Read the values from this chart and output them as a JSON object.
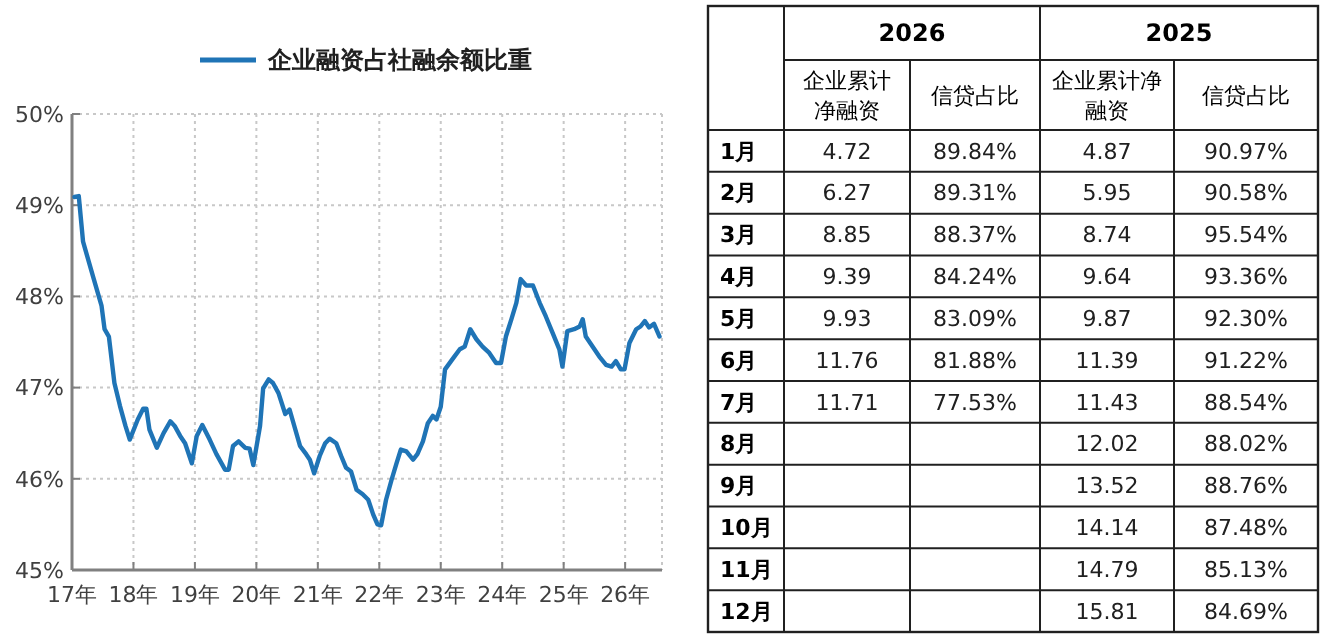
{
  "chart_data": [
    {
      "type": "line",
      "series": [
        {
          "name": "企业融资占社融余额比重",
          "color": "#1f74b6",
          "x": [
            17.04,
            17.11,
            17.18,
            17.35,
            17.48,
            17.53,
            17.6,
            17.69,
            17.78,
            17.87,
            17.94,
            18.07,
            18.16,
            18.21,
            18.26,
            18.38,
            18.49,
            18.6,
            18.67,
            18.76,
            18.84,
            18.95,
            19.03,
            19.12,
            19.24,
            19.35,
            19.49,
            19.55,
            19.62,
            19.71,
            19.82,
            19.89,
            19.95,
            20.06,
            20.11,
            20.2,
            20.27,
            20.36,
            20.47,
            20.54,
            20.71,
            20.81,
            20.87,
            20.94,
            21.03,
            21.12,
            21.19,
            21.3,
            21.38,
            21.46,
            21.54,
            21.63,
            21.73,
            21.82,
            21.9,
            21.97,
            22.03,
            22.11,
            22.2,
            22.28,
            22.35,
            22.44,
            22.55,
            22.62,
            22.71,
            22.79,
            22.87,
            22.93,
            23.0,
            23.07,
            23.2,
            23.31,
            23.39,
            23.48,
            23.58,
            23.68,
            23.79,
            23.9,
            23.98,
            24.06,
            24.15,
            24.23,
            24.3,
            24.39,
            24.5,
            24.61,
            24.71,
            24.82,
            24.93,
            24.98,
            25.06,
            25.17,
            25.26,
            25.31,
            25.36,
            25.47,
            25.58,
            25.69,
            25.78,
            25.85,
            25.93,
            25.99,
            26.07,
            26.18,
            26.25,
            26.32,
            26.39,
            26.47,
            26.56
          ],
          "values": [
            49.09,
            49.1,
            48.6,
            48.2,
            47.9,
            47.64,
            47.56,
            47.05,
            46.8,
            46.58,
            46.43,
            46.65,
            46.77,
            46.77,
            46.54,
            46.34,
            46.5,
            46.63,
            46.58,
            46.47,
            46.39,
            46.17,
            46.47,
            46.59,
            46.43,
            46.27,
            46.1,
            46.1,
            46.36,
            46.41,
            46.34,
            46.33,
            46.15,
            46.58,
            46.99,
            47.09,
            47.05,
            46.94,
            46.71,
            46.76,
            46.36,
            46.27,
            46.21,
            46.06,
            46.25,
            46.39,
            46.44,
            46.39,
            46.25,
            46.12,
            46.08,
            45.88,
            45.83,
            45.77,
            45.61,
            45.5,
            45.49,
            45.77,
            45.99,
            46.17,
            46.32,
            46.3,
            46.21,
            46.27,
            46.41,
            46.61,
            46.69,
            46.65,
            46.79,
            47.2,
            47.32,
            47.42,
            47.45,
            47.64,
            47.53,
            47.45,
            47.38,
            47.27,
            47.27,
            47.56,
            47.75,
            47.93,
            48.19,
            48.12,
            48.12,
            47.93,
            47.78,
            47.6,
            47.42,
            47.23,
            47.62,
            47.64,
            47.67,
            47.75,
            47.56,
            47.45,
            47.34,
            47.25,
            47.23,
            47.29,
            47.2,
            47.2,
            47.49,
            47.64,
            47.67,
            47.73,
            47.66,
            47.7,
            47.56
          ]
        }
      ],
      "xlim": [
        17,
        26.6
      ],
      "xticks": [
        {
          "value": 17,
          "label": "17年"
        },
        {
          "value": 18,
          "label": "18年"
        },
        {
          "value": 19,
          "label": "19年"
        },
        {
          "value": 20,
          "label": "20年"
        },
        {
          "value": 21,
          "label": "21年"
        },
        {
          "value": 22,
          "label": "22年"
        },
        {
          "value": 23,
          "label": "23年"
        },
        {
          "value": 24,
          "label": "24年"
        },
        {
          "value": 25,
          "label": "25年"
        },
        {
          "value": 26,
          "label": "26年"
        }
      ],
      "ylim": [
        45,
        50
      ],
      "yticks": [
        {
          "value": 45,
          "label": "45%"
        },
        {
          "value": 46,
          "label": "46%"
        },
        {
          "value": 47,
          "label": "47%"
        },
        {
          "value": 48,
          "label": "48%"
        },
        {
          "value": 49,
          "label": "49%"
        },
        {
          "value": 50,
          "label": "50%"
        }
      ],
      "grid": true,
      "legend": "top",
      "marker": "none",
      "line_style": "solid"
    },
    {
      "type": "heatmap",
      "annotations": [
        "2026",
        "2025"
      ],
      "categories": [
        "企业累计净融资",
        "信贷占比",
        "企业累计净融资",
        "信贷占比"
      ],
      "y_categories": [
        "1月",
        "2月",
        "3月",
        "4月",
        "5月",
        "6月",
        "7月",
        "8月",
        "9月",
        "10月",
        "11月",
        "12月"
      ],
      "cells": [
        [
          4.72,
          89.84,
          4.87,
          90.97
        ],
        [
          6.27,
          89.31,
          5.95,
          90.58
        ],
        [
          8.85,
          88.37,
          8.74,
          95.54
        ],
        [
          9.39,
          84.24,
          9.64,
          93.36
        ],
        [
          9.93,
          83.09,
          9.87,
          92.3
        ],
        [
          11.76,
          81.88,
          11.39,
          91.22
        ],
        [
          11.71,
          77.53,
          11.43,
          88.54
        ],
        [
          null,
          null,
          12.02,
          88.02
        ],
        [
          null,
          null,
          13.52,
          88.76
        ],
        [
          null,
          null,
          14.14,
          87.48
        ],
        [
          null,
          null,
          14.79,
          85.13
        ],
        [
          null,
          null,
          15.81,
          84.69
        ]
      ],
      "cell_labels": [
        [
          "4.72",
          "89.84%",
          "4.87",
          "90.97%"
        ],
        [
          "6.27",
          "89.31%",
          "5.95",
          "90.58%"
        ],
        [
          "8.85",
          "88.37%",
          "8.74",
          "95.54%"
        ],
        [
          "9.39",
          "84.24%",
          "9.64",
          "93.36%"
        ],
        [
          "9.93",
          "83.09%",
          "9.87",
          "92.30%"
        ],
        [
          "11.76",
          "81.88%",
          "11.39",
          "91.22%"
        ],
        [
          "11.71",
          "77.53%",
          "11.43",
          "88.54%"
        ],
        [
          null,
          null,
          "12.02",
          "88.02%"
        ],
        [
          null,
          null,
          "13.52",
          "88.76%"
        ],
        [
          null,
          null,
          "14.14",
          "87.48%"
        ],
        [
          null,
          null,
          "14.79",
          "85.13%"
        ],
        [
          null,
          null,
          "15.81",
          "84.69%"
        ]
      ]
    }
  ]
}
